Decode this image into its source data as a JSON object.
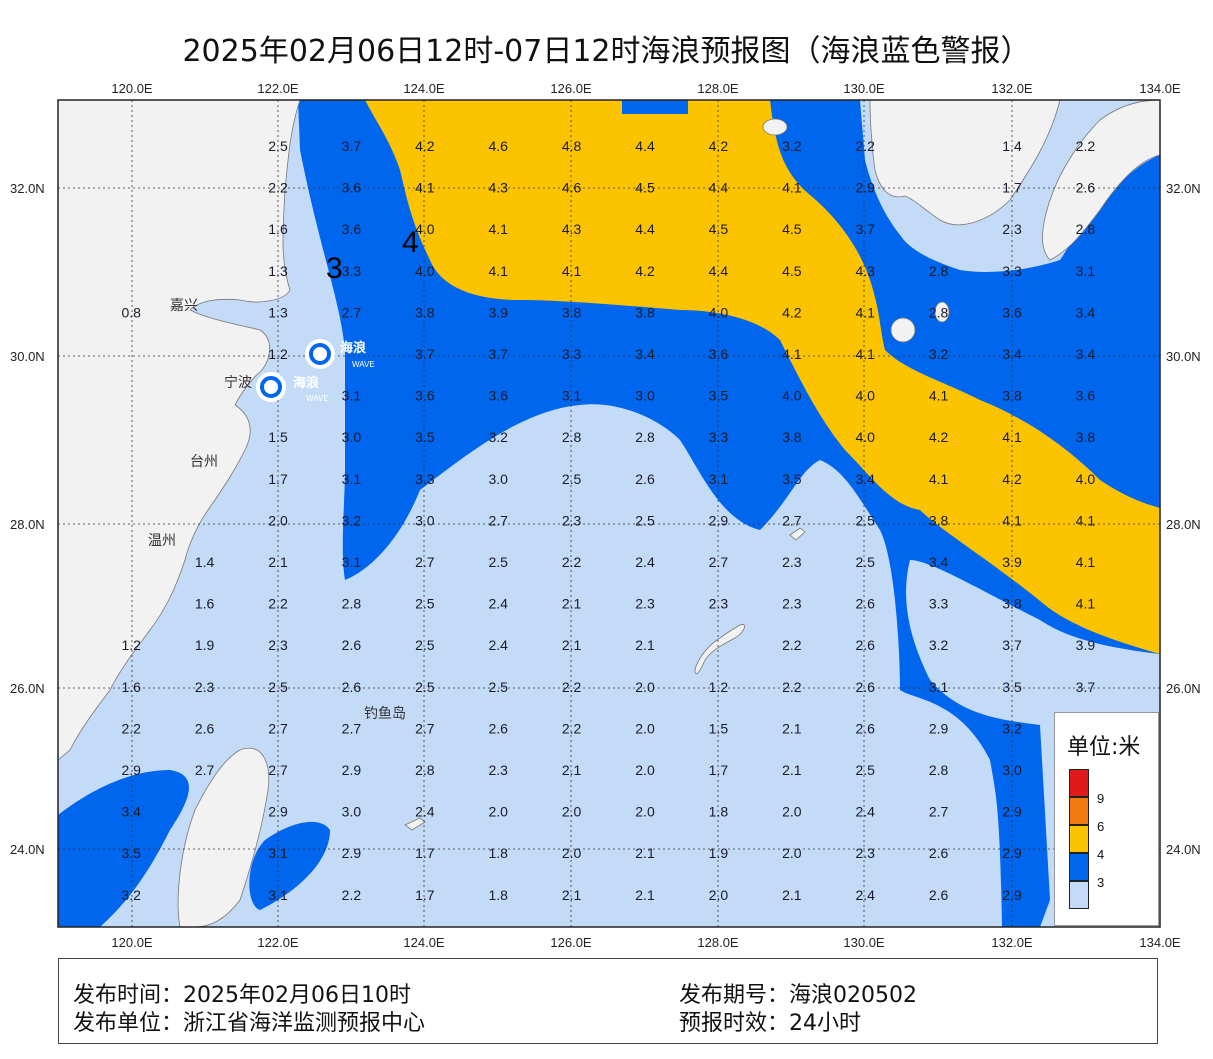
{
  "title": "2025年02月06日12时-07日12时海浪预报图（海浪蓝色警报）",
  "axes": {
    "lon_ticks": [
      "120.0E",
      "122.0E",
      "124.0E",
      "126.0E",
      "128.0E",
      "130.0E",
      "132.0E",
      "134.0E"
    ],
    "lat_ticks": [
      "32.0N",
      "30.0N",
      "28.0N",
      "26.0N",
      "24.0N"
    ]
  },
  "colors": {
    "land": "#f2f2f2",
    "sea_lt3": "#c3dbf6",
    "sea_3_4": "#0066ee",
    "sea_4_6": "#fcc400",
    "sea_6_9": "#f07a10",
    "sea_gt9": "#e01a1a"
  },
  "places": [
    {
      "name": "嘉兴"
    },
    {
      "name": "宁波"
    },
    {
      "name": "台州"
    },
    {
      "name": "温州"
    },
    {
      "name": "钓鱼岛"
    }
  ],
  "contour_labels": [
    "3",
    "4"
  ],
  "logo_text": {
    "cn": "海浪",
    "en": "WAVE"
  },
  "legend": {
    "title": "单位:米",
    "levels": [
      "9",
      "6",
      "4",
      "3"
    ]
  },
  "footer": {
    "publish_time": "发布时间：2025年02月06日10时",
    "issue_no": "发布期号：海浪020502",
    "publisher": "发布单位：浙江省海洋监测预报中心",
    "validity": "预报时效：24小时"
  },
  "chart_data": {
    "type": "heatmap",
    "columns_lon": [
      "122.0E",
      "122.0E+1",
      "124.0E",
      "124.0E+1",
      "126.0E",
      "126.0E+1",
      "128.0E",
      "128.0E+1",
      "130.0E",
      "130.0E+1",
      "132.0E",
      "132.0E+1"
    ],
    "grid": [
      [
        "2.5",
        "3.7",
        "4.2",
        "4.6",
        "4.8",
        "4.4",
        "4.2",
        "3.2",
        "2.2",
        "",
        "1.4",
        "2.2"
      ],
      [
        "2.2",
        "3.6",
        "4.1",
        "4.3",
        "4.6",
        "4.5",
        "4.4",
        "4.1",
        "2.9",
        "",
        "1.7",
        "2.6"
      ],
      [
        "1.6",
        "3.6",
        "4.0",
        "4.1",
        "4.3",
        "4.4",
        "4.5",
        "4.5",
        "3.7",
        "",
        "2.3",
        "2.8"
      ],
      [
        "1.3",
        "3.3",
        "4.0",
        "4.1",
        "4.1",
        "4.2",
        "4.4",
        "4.5",
        "4.3",
        "2.8",
        "3.3",
        "3.1"
      ],
      [
        "1.3",
        "2.7",
        "3.8",
        "3.9",
        "3.8",
        "3.8",
        "4.0",
        "4.2",
        "4.1",
        "2.8",
        "3.6",
        "3.4"
      ],
      [
        "1.2",
        "",
        "3.7",
        "3.7",
        "3.3",
        "3.4",
        "3.6",
        "4.1",
        "4.1",
        "3.2",
        "3.4",
        "3.4"
      ],
      [
        "",
        "3.1",
        "3.6",
        "3.6",
        "3.1",
        "3.0",
        "3.5",
        "4.0",
        "4.0",
        "4.1",
        "3.8",
        "3.6"
      ],
      [
        "1.5",
        "3.0",
        "3.5",
        "3.2",
        "2.8",
        "2.8",
        "3.3",
        "3.8",
        "4.0",
        "4.2",
        "4.1",
        "3.8"
      ],
      [
        "1.7",
        "3.1",
        "3.3",
        "3.0",
        "2.5",
        "2.6",
        "3.1",
        "3.5",
        "3.4",
        "4.1",
        "4.2",
        "4.0"
      ],
      [
        "2.0",
        "3.2",
        "3.0",
        "2.7",
        "2.3",
        "2.5",
        "2.9",
        "2.7",
        "2.5",
        "3.8",
        "4.1",
        "4.1"
      ],
      [
        "2.1",
        "3.1",
        "2.7",
        "2.5",
        "2.2",
        "2.4",
        "2.7",
        "2.3",
        "2.5",
        "3.4",
        "3.9",
        "4.1"
      ],
      [
        "2.2",
        "2.8",
        "2.5",
        "2.4",
        "2.1",
        "2.3",
        "2.3",
        "2.3",
        "2.6",
        "3.3",
        "3.8",
        "4.1"
      ],
      [
        "2.3",
        "2.6",
        "2.5",
        "2.4",
        "2.1",
        "2.1",
        "",
        "2.2",
        "2.6",
        "3.2",
        "3.7",
        "3.9"
      ],
      [
        "2.5",
        "2.6",
        "2.5",
        "2.5",
        "2.2",
        "2.0",
        "1.2",
        "2.2",
        "2.6",
        "3.1",
        "3.5",
        "3.7"
      ],
      [
        "2.7",
        "2.7",
        "2.7",
        "2.6",
        "2.2",
        "2.0",
        "1.5",
        "2.1",
        "2.6",
        "2.9",
        "3.2",
        ""
      ],
      [
        "2.7",
        "2.9",
        "2.8",
        "2.3",
        "2.1",
        "2.0",
        "1.7",
        "2.1",
        "2.5",
        "2.8",
        "3.0",
        ""
      ],
      [
        "2.9",
        "3.0",
        "2.4",
        "2.0",
        "2.0",
        "2.0",
        "1.8",
        "2.0",
        "2.4",
        "2.7",
        "2.9",
        ""
      ],
      [
        "3.1",
        "2.9",
        "1.7",
        "1.8",
        "2.0",
        "2.1",
        "1.9",
        "2.0",
        "2.3",
        "2.6",
        "2.9",
        ""
      ],
      [
        "3.1",
        "2.2",
        "1.7",
        "1.8",
        "2.1",
        "2.1",
        "2.0",
        "2.1",
        "2.4",
        "2.6",
        "2.9",
        ""
      ]
    ],
    "left_extra": [
      {
        "row": 4,
        "col": -2,
        "v": "0.8"
      },
      {
        "row": 10,
        "col": -1,
        "v": "1.4"
      },
      {
        "row": 11,
        "col": -1,
        "v": "1.6"
      },
      {
        "row": 12,
        "col": -2,
        "v": "1.2"
      },
      {
        "row": 12,
        "col": -1,
        "v": "1.9"
      },
      {
        "row": 13,
        "col": -2,
        "v": "1.6"
      },
      {
        "row": 13,
        "col": -1,
        "v": "2.3"
      },
      {
        "row": 14,
        "col": -2,
        "v": "2.2"
      },
      {
        "row": 14,
        "col": -1,
        "v": "2.6"
      },
      {
        "row": 15,
        "col": -2,
        "v": "2.9"
      },
      {
        "row": 15,
        "col": -1,
        "v": "2.7"
      },
      {
        "row": 16,
        "col": -2,
        "v": "3.4"
      },
      {
        "row": 17,
        "col": -2,
        "v": "3.5"
      },
      {
        "row": 18,
        "col": -2,
        "v": "3.2"
      }
    ]
  }
}
